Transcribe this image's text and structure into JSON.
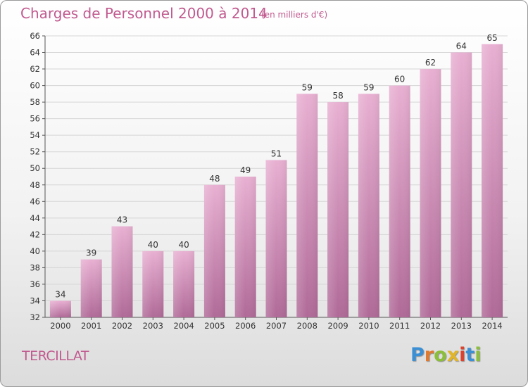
{
  "header": {
    "title": "Charges de Personnel 2000 à 2014",
    "subtitle": "(en milliers d'€)"
  },
  "footer": {
    "commune": "TERCILLAT",
    "logo_text": "Proxiti",
    "logo_letters": [
      {
        "ch": "P",
        "color": "#3b8fd4"
      },
      {
        "ch": "r",
        "color": "#e07a2e"
      },
      {
        "ch": "o",
        "color": "#8bbf3a"
      },
      {
        "ch": "x",
        "color": "#e2b528"
      },
      {
        "ch": "i",
        "color": "#d9432f"
      },
      {
        "ch": "t",
        "color": "#3b8fd4"
      },
      {
        "ch": "i",
        "color": "#8bbf3a"
      }
    ]
  },
  "colors": {
    "bar_light": "#e8b0d2",
    "bar_dark": "#b06a98",
    "label": "#333333",
    "axis": "#555555",
    "grid": "#d6d6d6"
  },
  "chart_data": {
    "type": "bar",
    "title": "Charges de Personnel 2000 à 2014",
    "subtitle": "(en milliers d'€)",
    "categories": [
      "2000",
      "2001",
      "2002",
      "2003",
      "2004",
      "2005",
      "2006",
      "2007",
      "2008",
      "2009",
      "2010",
      "2011",
      "2012",
      "2013",
      "2014"
    ],
    "values": [
      34,
      39,
      43,
      40,
      40,
      48,
      49,
      51,
      59,
      58,
      59,
      60,
      62,
      64,
      65
    ],
    "ylim": [
      32,
      66
    ],
    "ytick_step": 2,
    "grid": true,
    "data_labels": true,
    "legend": "none"
  }
}
